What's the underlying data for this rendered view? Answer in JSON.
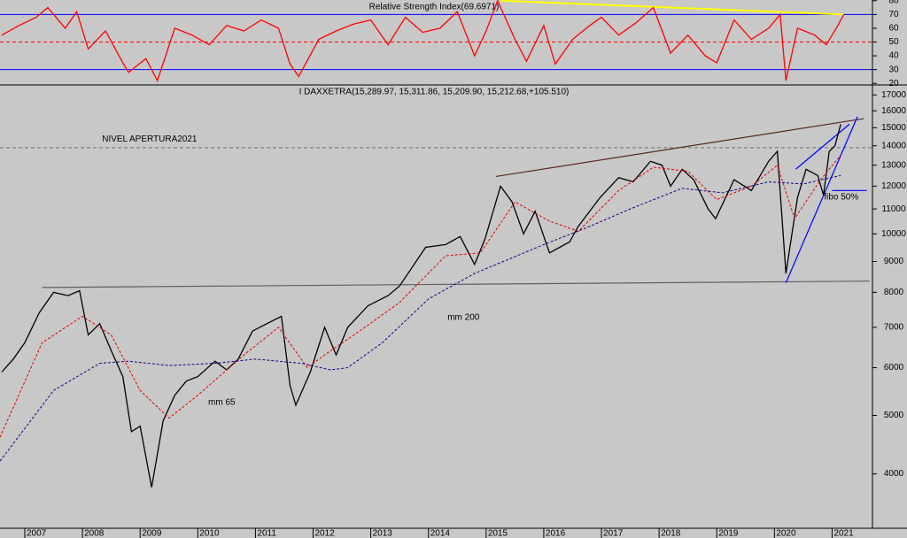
{
  "chart_data": [
    {
      "type": "line",
      "title": "Relative Strength Index(69.6971)",
      "xlim": [
        2006.57,
        2021.7
      ],
      "ylim": [
        19.5,
        80.5
      ],
      "yticks": [
        20,
        30,
        40,
        50,
        60,
        70,
        80
      ],
      "levels": [
        {
          "value": 70,
          "color": "#0000ff",
          "dash": false
        },
        {
          "value": 30,
          "color": "#0000ff",
          "dash": false
        },
        {
          "value": 50,
          "color": "#ff0000",
          "dash": true
        }
      ],
      "trendlines": [
        {
          "x": [
            2015.25,
            2021.2
          ],
          "y": [
            80,
            70
          ],
          "color": "#ffff00"
        }
      ],
      "series": [
        {
          "color": "#ff0000",
          "dash": false,
          "x": [
            2006.6,
            2006.9,
            2007.2,
            2007.4,
            2007.7,
            2007.9,
            2008.1,
            2008.4,
            2008.7,
            2008.8,
            2009.1,
            2009.3,
            2009.6,
            2009.9,
            2010.2,
            2010.5,
            2010.8,
            2011.1,
            2011.4,
            2011.6,
            2011.75,
            2012.1,
            2012.4,
            2012.7,
            2013.0,
            2013.3,
            2013.6,
            2013.9,
            2014.2,
            2014.5,
            2014.8,
            2015.0,
            2015.2,
            2015.5,
            2015.7,
            2016.0,
            2016.2,
            2016.5,
            2016.8,
            2017.0,
            2017.3,
            2017.6,
            2017.9,
            2018.2,
            2018.5,
            2018.8,
            2019.0,
            2019.3,
            2019.6,
            2019.9,
            2020.1,
            2020.2,
            2020.4,
            2020.7,
            2020.9,
            2021.1,
            2021.2
          ],
          "values": [
            55,
            62,
            68,
            75,
            60,
            72,
            45,
            58,
            35,
            28,
            38,
            22,
            60,
            55,
            48,
            62,
            58,
            66,
            60,
            34,
            25,
            52,
            58,
            63,
            66,
            48,
            68,
            57,
            60,
            72,
            40,
            58,
            80,
            52,
            36,
            62,
            34,
            52,
            62,
            68,
            55,
            64,
            75,
            42,
            55,
            40,
            35,
            66,
            52,
            60,
            70,
            22,
            60,
            55,
            48,
            62,
            69.7
          ]
        }
      ]
    },
    {
      "type": "line",
      "title": "I DAXXETRA(15,289.97, 15,311.86, 15,209.90, 15,212.68,+105.510)",
      "log_y": true,
      "xlim": [
        2006.57,
        2021.7
      ],
      "ylim": [
        3250,
        17600
      ],
      "xticks": [
        2007,
        2008,
        2009,
        2010,
        2011,
        2012,
        2013,
        2014,
        2015,
        2016,
        2017,
        2018,
        2019,
        2020,
        2021
      ],
      "yticks": [
        4000,
        5000,
        6000,
        7000,
        8000,
        9000,
        10000,
        11000,
        12000,
        13000,
        14000,
        15000,
        16000,
        17000
      ],
      "levels": [
        {
          "value": 13900,
          "color": "#707070",
          "dash": true
        }
      ],
      "trendlines": [
        {
          "x": [
            2007.3,
            2021.65
          ],
          "y": [
            8150,
            8350
          ],
          "color": "#606060"
        },
        {
          "x": [
            2015.17,
            2021.55
          ],
          "y": [
            12450,
            15530
          ],
          "color": "#5a2a20"
        },
        {
          "x": [
            2020.2,
            2021.44
          ],
          "y": [
            8300,
            15650
          ],
          "color": "#0000ff"
        },
        {
          "x": [
            2020.37,
            2021.3
          ],
          "y": [
            12800,
            15200
          ],
          "color": "#0000ff"
        },
        {
          "x": [
            2021.0,
            2021.6
          ],
          "y": [
            11800,
            11800
          ],
          "color": "#0000ff"
        }
      ],
      "annotations": [
        {
          "text": "NIVEL APERTURA2021",
          "x": 2008.34,
          "y": 14360,
          "color": "#000000"
        },
        {
          "text": "mm 200",
          "x": 2014.33,
          "y": 7260,
          "color": "#1a0080"
        },
        {
          "text": "mm 65",
          "x": 2010.18,
          "y": 5250,
          "color": "#ff0000"
        },
        {
          "text": "fibo 50%",
          "x": 2020.86,
          "y": 11500,
          "color": "#0000ff"
        }
      ],
      "series": [
        {
          "color": "#000000",
          "dash": false,
          "x": [
            2006.6,
            2006.8,
            2007.0,
            2007.25,
            2007.5,
            2007.75,
            2007.95,
            2008.1,
            2008.3,
            2008.5,
            2008.7,
            2008.85,
            2009.0,
            2009.2,
            2009.4,
            2009.6,
            2009.8,
            2010.0,
            2010.3,
            2010.5,
            2010.7,
            2010.95,
            2011.2,
            2011.45,
            2011.6,
            2011.7,
            2011.95,
            2012.2,
            2012.4,
            2012.6,
            2012.95,
            2013.3,
            2013.5,
            2013.95,
            2014.3,
            2014.55,
            2014.8,
            2014.98,
            2015.25,
            2015.45,
            2015.65,
            2015.85,
            2016.1,
            2016.45,
            2016.6,
            2016.98,
            2017.3,
            2017.55,
            2017.85,
            2018.05,
            2018.2,
            2018.4,
            2018.6,
            2018.85,
            2018.98,
            2019.3,
            2019.6,
            2019.9,
            2020.05,
            2020.2,
            2020.4,
            2020.55,
            2020.75,
            2020.85,
            2020.95,
            2021.05,
            2021.15
          ],
          "values": [
            5900,
            6200,
            6600,
            7400,
            8000,
            7900,
            8050,
            6800,
            7100,
            6400,
            5800,
            4700,
            4800,
            3800,
            4900,
            5400,
            5700,
            5800,
            6150,
            5950,
            6200,
            6900,
            7100,
            7300,
            5600,
            5200,
            5900,
            7000,
            6300,
            7000,
            7600,
            7900,
            8200,
            9500,
            9600,
            9900,
            8900,
            9800,
            12000,
            11300,
            10000,
            10900,
            9300,
            9700,
            10300,
            11500,
            12400,
            12200,
            13200,
            13000,
            12000,
            12800,
            12300,
            11000,
            10600,
            12300,
            11800,
            13200,
            13700,
            8600,
            11500,
            12800,
            12500,
            11600,
            13700,
            14000,
            15200
          ]
        },
        {
          "color": "#e00000",
          "dash": true,
          "x": [
            2006.57,
            2007.3,
            2008.0,
            2008.5,
            2009.0,
            2009.5,
            2010.0,
            2010.8,
            2011.4,
            2011.9,
            2012.2,
            2012.9,
            2013.5,
            2014.3,
            2014.9,
            2015.5,
            2016.1,
            2016.6,
            2017.3,
            2017.9,
            2018.5,
            2019.0,
            2019.6,
            2020.05,
            2020.35,
            2020.8,
            2021.15
          ],
          "values": [
            4600,
            6600,
            7300,
            6800,
            5500,
            4950,
            5400,
            6300,
            7000,
            6000,
            6300,
            7000,
            7700,
            9200,
            9300,
            11300,
            10500,
            10100,
            11800,
            12900,
            12700,
            11400,
            12000,
            13000,
            10600,
            12300,
            13500
          ]
        },
        {
          "color": "#1a0080",
          "dash": true,
          "x": [
            2006.57,
            2007.5,
            2008.3,
            2008.8,
            2009.5,
            2010.3,
            2011.0,
            2011.8,
            2012.3,
            2012.6,
            2013.2,
            2014.0,
            2014.8,
            2015.3,
            2016.0,
            2016.7,
            2017.5,
            2018.4,
            2019.1,
            2019.9,
            2020.5,
            2021.15
          ],
          "values": [
            4200,
            5500,
            6100,
            6150,
            6050,
            6100,
            6200,
            6100,
            5950,
            6000,
            6600,
            7800,
            8600,
            9000,
            9600,
            10200,
            11000,
            11900,
            11700,
            12200,
            12100,
            12500
          ]
        }
      ]
    }
  ]
}
